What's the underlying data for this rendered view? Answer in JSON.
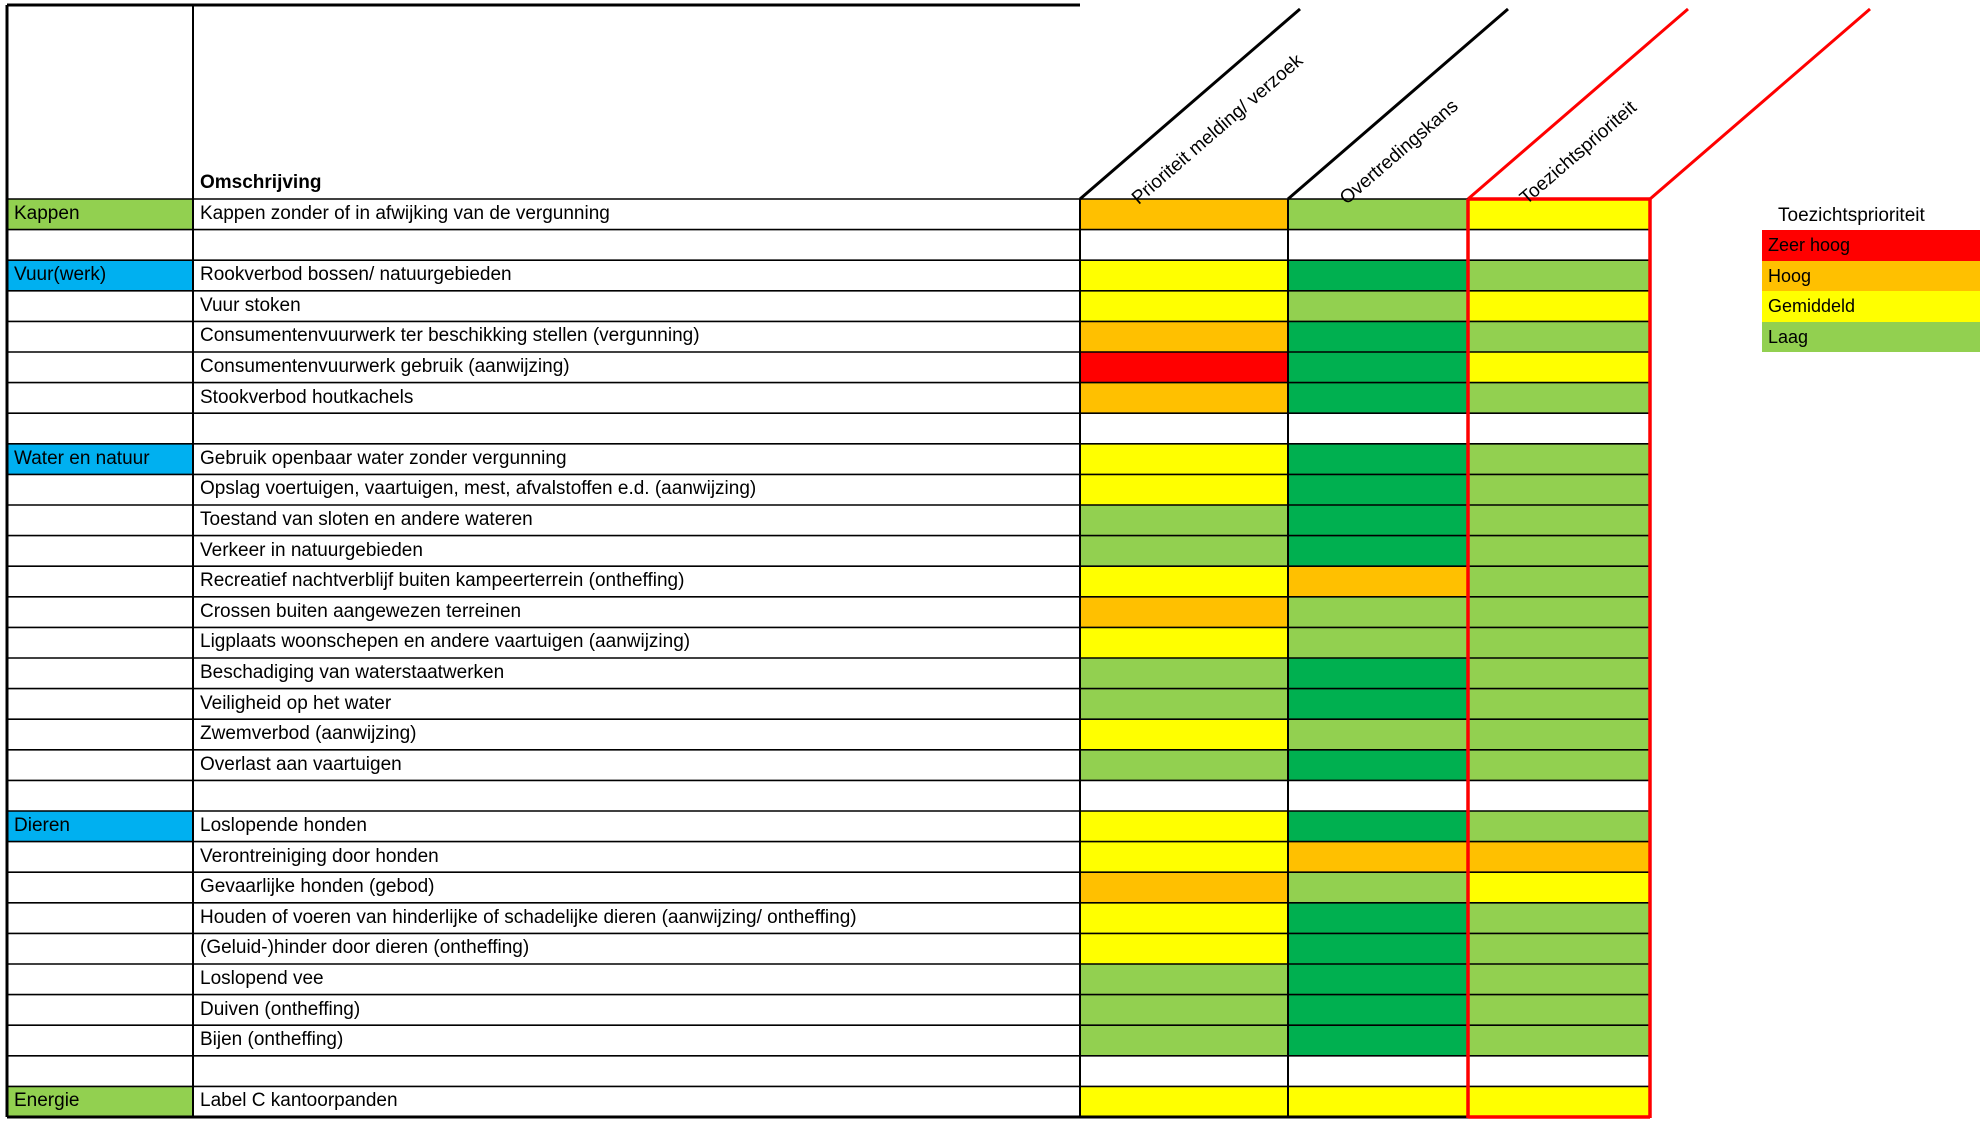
{
  "header": {
    "description_label": "Omschrijving",
    "columns": [
      "Prioriteit melding/ verzoek",
      "Overtredingskans",
      "Toezichtsprioriteit"
    ]
  },
  "colors": {
    "red": "#ff0000",
    "orange": "#ffc000",
    "yellow": "#ffff00",
    "lightgreen": "#92d050",
    "darkgreen": "#00b050",
    "white": "#ffffff",
    "category_blue": "#00b0f0",
    "category_green": "#92d050",
    "highlight_border": "#ff0000"
  },
  "rows": [
    {
      "category": "Kappen",
      "cat_color": "category_green",
      "description": "Kappen zonder of in afwijking van de vergunning",
      "values": [
        "orange",
        "lightgreen",
        "yellow"
      ]
    },
    {
      "category": "",
      "cat_color": "white",
      "description": "",
      "values": [
        "white",
        "white",
        "white"
      ]
    },
    {
      "category": "Vuur(werk)",
      "cat_color": "category_blue",
      "description": "Rookverbod bossen/ natuurgebieden",
      "values": [
        "yellow",
        "darkgreen",
        "lightgreen"
      ]
    },
    {
      "category": "",
      "cat_color": "white",
      "description": "Vuur stoken",
      "values": [
        "yellow",
        "lightgreen",
        "yellow"
      ]
    },
    {
      "category": "",
      "cat_color": "white",
      "description": "Consumentenvuurwerk ter beschikking stellen (vergunning)",
      "values": [
        "orange",
        "darkgreen",
        "lightgreen"
      ]
    },
    {
      "category": "",
      "cat_color": "white",
      "description": "Consumentenvuurwerk gebruik (aanwijzing)",
      "values": [
        "red",
        "darkgreen",
        "yellow"
      ]
    },
    {
      "category": "",
      "cat_color": "white",
      "description": "Stookverbod houtkachels",
      "values": [
        "orange",
        "darkgreen",
        "lightgreen"
      ]
    },
    {
      "category": "",
      "cat_color": "white",
      "description": "",
      "values": [
        "white",
        "white",
        "white"
      ]
    },
    {
      "category": "Water en natuur",
      "cat_color": "category_blue",
      "description": "Gebruik openbaar water zonder vergunning",
      "values": [
        "yellow",
        "darkgreen",
        "lightgreen"
      ]
    },
    {
      "category": "",
      "cat_color": "white",
      "description": "Opslag voertuigen, vaartuigen, mest, afvalstoffen e.d. (aanwijzing)",
      "values": [
        "yellow",
        "darkgreen",
        "lightgreen"
      ]
    },
    {
      "category": "",
      "cat_color": "white",
      "description": "Toestand van sloten en andere wateren",
      "values": [
        "lightgreen",
        "darkgreen",
        "lightgreen"
      ]
    },
    {
      "category": "",
      "cat_color": "white",
      "description": "Verkeer in natuurgebieden",
      "values": [
        "lightgreen",
        "darkgreen",
        "lightgreen"
      ]
    },
    {
      "category": "",
      "cat_color": "white",
      "description": "Recreatief nachtverblijf buiten kampeerterrein (ontheffing)",
      "values": [
        "yellow",
        "orange",
        "lightgreen"
      ]
    },
    {
      "category": "",
      "cat_color": "white",
      "description": "Crossen buiten aangewezen terreinen",
      "values": [
        "orange",
        "lightgreen",
        "lightgreen"
      ]
    },
    {
      "category": "",
      "cat_color": "white",
      "description": "Ligplaats woonschepen en andere vaartuigen (aanwijzing)",
      "values": [
        "yellow",
        "lightgreen",
        "lightgreen"
      ]
    },
    {
      "category": "",
      "cat_color": "white",
      "description": "Beschadiging van waterstaatwerken",
      "values": [
        "lightgreen",
        "darkgreen",
        "lightgreen"
      ]
    },
    {
      "category": "",
      "cat_color": "white",
      "description": "Veiligheid op het water",
      "values": [
        "lightgreen",
        "darkgreen",
        "lightgreen"
      ]
    },
    {
      "category": "",
      "cat_color": "white",
      "description": "Zwemverbod (aanwijzing)",
      "values": [
        "yellow",
        "lightgreen",
        "lightgreen"
      ]
    },
    {
      "category": "",
      "cat_color": "white",
      "description": "Overlast aan vaartuigen",
      "values": [
        "lightgreen",
        "darkgreen",
        "lightgreen"
      ]
    },
    {
      "category": "",
      "cat_color": "white",
      "description": "",
      "values": [
        "white",
        "white",
        "white"
      ]
    },
    {
      "category": "Dieren",
      "cat_color": "category_blue",
      "description": "Loslopende honden",
      "values": [
        "yellow",
        "darkgreen",
        "lightgreen"
      ]
    },
    {
      "category": "",
      "cat_color": "white",
      "description": "Verontreiniging door honden",
      "values": [
        "yellow",
        "orange",
        "orange"
      ]
    },
    {
      "category": "",
      "cat_color": "white",
      "description": "Gevaarlijke honden (gebod)",
      "values": [
        "orange",
        "lightgreen",
        "yellow"
      ]
    },
    {
      "category": "",
      "cat_color": "white",
      "description": "Houden of voeren van hinderlijke of schadelijke dieren (aanwijzing/ ontheffing)",
      "values": [
        "yellow",
        "darkgreen",
        "lightgreen"
      ]
    },
    {
      "category": "",
      "cat_color": "white",
      "description": "(Geluid-)hinder door dieren (ontheffing)",
      "values": [
        "yellow",
        "darkgreen",
        "lightgreen"
      ]
    },
    {
      "category": "",
      "cat_color": "white",
      "description": "Loslopend vee",
      "values": [
        "lightgreen",
        "darkgreen",
        "lightgreen"
      ]
    },
    {
      "category": "",
      "cat_color": "white",
      "description": "Duiven (ontheffing)",
      "values": [
        "lightgreen",
        "darkgreen",
        "lightgreen"
      ]
    },
    {
      "category": "",
      "cat_color": "white",
      "description": "Bijen (ontheffing)",
      "values": [
        "lightgreen",
        "darkgreen",
        "lightgreen"
      ]
    },
    {
      "category": "",
      "cat_color": "white",
      "description": "",
      "values": [
        "white",
        "white",
        "white"
      ]
    },
    {
      "category": "Energie",
      "cat_color": "category_green",
      "description": "Label C kantoorpanden",
      "values": [
        "yellow",
        "yellow",
        "yellow"
      ]
    }
  ],
  "legend": {
    "title": "Toezichtsprioriteit",
    "items": [
      {
        "label": "Zeer hoog",
        "color": "red"
      },
      {
        "label": "Hoog",
        "color": "orange"
      },
      {
        "label": "Gemiddeld",
        "color": "yellow"
      },
      {
        "label": "Laag",
        "color": "lightgreen"
      }
    ]
  }
}
